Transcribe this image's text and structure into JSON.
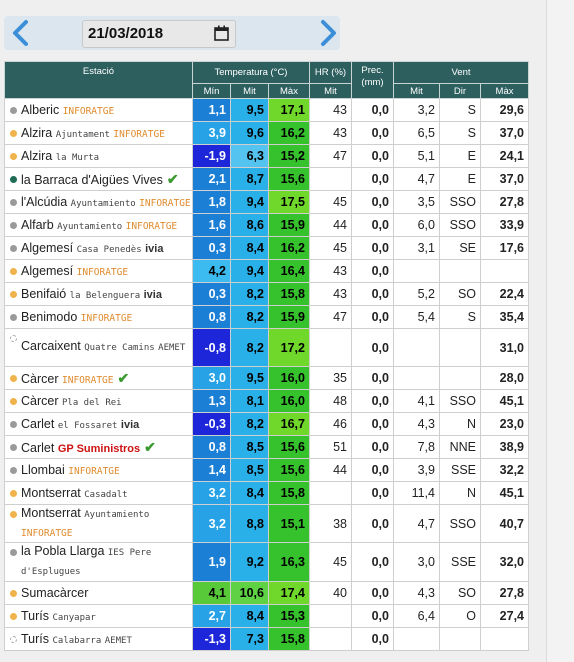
{
  "date": "21/03/2018",
  "headers": {
    "station": "Estació",
    "temperature": "Temperatura (°C)",
    "hr": "HR (%)",
    "prec": "Prec.",
    "prec_unit": "(mm)",
    "wind": "Vent",
    "min": "Mín",
    "mit": "Mit",
    "max": "Màx",
    "hr_mit": "Mit",
    "wind_mit": "Mit",
    "dir": "Dir",
    "wind_max": "Màx"
  },
  "rows": [
    {
      "name": "Alberic",
      "sub": "",
      "brand": "INFORATGE",
      "dot": "grey",
      "min": "1,1",
      "mit": "9,5",
      "max": "17,1",
      "hr": "43",
      "prec": "0,0",
      "wmit": "3,2",
      "dir": "S",
      "wmax": "29,6",
      "mincls": "min-a",
      "mitcls": "mit-a",
      "maxcls": "max-a"
    },
    {
      "name": "Alzira",
      "sub": "Ajuntament",
      "brand": "INFORATGE",
      "dot": "orange",
      "min": "3,9",
      "mit": "9,6",
      "max": "16,2",
      "hr": "43",
      "prec": "0,0",
      "wmit": "6,5",
      "dir": "S",
      "wmax": "37,0",
      "mincls": "min-b",
      "mitcls": "mit-a",
      "maxcls": "max-b"
    },
    {
      "name": "Alzira",
      "sub": "la Murta",
      "brand": "",
      "dot": "orange",
      "min": "-1,9",
      "mit": "6,3",
      "max": "15,2",
      "hr": "47",
      "prec": "0,0",
      "wmit": "5,1",
      "dir": "E",
      "wmax": "24,1",
      "mincls": "min-c",
      "mitcls": "mit-b",
      "maxcls": "max-b"
    },
    {
      "name": "la Barraca d'Aigües Vives",
      "sub": "",
      "brand": "",
      "dot": "darkgreen",
      "check": "✔",
      "min": "2,1",
      "mit": "8,7",
      "max": "15,6",
      "hr": "",
      "prec": "0,0",
      "wmit": "4,7",
      "dir": "E",
      "wmax": "37,0",
      "mincls": "min-a",
      "mitcls": "mit-a",
      "maxcls": "max-b"
    },
    {
      "name": "l'Alcúdia",
      "sub": "Ayuntamiento",
      "brand": "INFORATGE",
      "dot": "grey",
      "min": "1,8",
      "mit": "9,4",
      "max": "17,5",
      "hr": "45",
      "prec": "0,0",
      "wmit": "3,5",
      "dir": "SSO",
      "wmax": "27,8",
      "mincls": "min-a",
      "mitcls": "mit-a",
      "maxcls": "max-a"
    },
    {
      "name": "Alfarb",
      "sub": "Ayuntamiento",
      "brand": "INFORATGE",
      "dot": "grey",
      "min": "1,6",
      "mit": "8,6",
      "max": "15,9",
      "hr": "44",
      "prec": "0,0",
      "wmit": "6,0",
      "dir": "SSO",
      "wmax": "33,9",
      "mincls": "min-a",
      "mitcls": "mit-a",
      "maxcls": "max-b"
    },
    {
      "name": "Algemesí",
      "sub": "Casa Penedès",
      "brand": "ivia",
      "dot": "grey",
      "min": "0,3",
      "mit": "8,4",
      "max": "16,2",
      "hr": "45",
      "prec": "0,0",
      "wmit": "3,1",
      "dir": "SE",
      "wmax": "17,6",
      "mincls": "min-a",
      "mitcls": "mit-a",
      "maxcls": "max-b"
    },
    {
      "name": "Algemesí",
      "sub": "",
      "brand": "INFORATGE",
      "dot": "orange",
      "min": "4,2",
      "mit": "9,4",
      "max": "16,4",
      "hr": "43",
      "prec": "0,0",
      "wmit": "",
      "dir": "",
      "wmax": "",
      "mincls": "min-d",
      "mitcls": "mit-a",
      "maxcls": "max-b"
    },
    {
      "name": "Benifaió",
      "sub": "la Belenguera",
      "brand": "ivia",
      "dot": "orange",
      "min": "0,3",
      "mit": "8,2",
      "max": "15,8",
      "hr": "43",
      "prec": "0,0",
      "wmit": "5,2",
      "dir": "SO",
      "wmax": "22,4",
      "mincls": "min-a",
      "mitcls": "mit-a",
      "maxcls": "max-b"
    },
    {
      "name": "Benimodo",
      "sub": "",
      "brand": "INFORATGE",
      "dot": "grey",
      "min": "0,8",
      "mit": "8,2",
      "max": "15,9",
      "hr": "47",
      "prec": "0,0",
      "wmit": "5,4",
      "dir": "S",
      "wmax": "35,4",
      "mincls": "min-a",
      "mitcls": "mit-a",
      "maxcls": "max-b"
    },
    {
      "name": "Carcaixent",
      "sub": "Quatre Camins",
      "brand": "AEMET",
      "dot": "hollow",
      "wrap": true,
      "min": "-0,8",
      "mit": "8,2",
      "max": "17,2",
      "hr": "",
      "prec": "0,0",
      "wmit": "",
      "dir": "",
      "wmax": "31,0",
      "mincls": "min-c",
      "mitcls": "mit-a",
      "maxcls": "max-a"
    },
    {
      "name": "Càrcer",
      "sub": "",
      "brand": "INFORATGE",
      "dot": "orange",
      "check": "✔",
      "min": "3,0",
      "mit": "9,5",
      "max": "16,0",
      "hr": "35",
      "prec": "0,0",
      "wmit": "",
      "dir": "",
      "wmax": "28,0",
      "mincls": "min-b",
      "mitcls": "mit-a",
      "maxcls": "max-b"
    },
    {
      "name": "Càrcer",
      "sub": "Pla del Rei",
      "brand": "",
      "dot": "orange",
      "min": "1,3",
      "mit": "8,1",
      "max": "16,0",
      "hr": "48",
      "prec": "0,0",
      "wmit": "4,1",
      "dir": "SSO",
      "wmax": "45,1",
      "mincls": "min-a",
      "mitcls": "mit-a",
      "maxcls": "max-b"
    },
    {
      "name": "Carlet",
      "sub": "el Fossaret",
      "brand": "ivia",
      "dot": "grey",
      "min": "-0,3",
      "mit": "8,2",
      "max": "16,7",
      "hr": "46",
      "prec": "0,0",
      "wmit": "4,3",
      "dir": "N",
      "wmax": "23,0",
      "mincls": "min-c",
      "mitcls": "mit-a",
      "maxcls": "max-a"
    },
    {
      "name": "Carlet",
      "sub": "",
      "brand": "GP Suministros",
      "dot": "grey",
      "check": "✔",
      "min": "0,8",
      "mit": "8,5",
      "max": "15,6",
      "hr": "51",
      "prec": "0,0",
      "wmit": "7,8",
      "dir": "NNE",
      "wmax": "38,9",
      "mincls": "min-a",
      "mitcls": "mit-a",
      "maxcls": "max-b"
    },
    {
      "name": "Llombai",
      "sub": "",
      "brand": "INFORATGE",
      "dot": "grey",
      "min": "1,4",
      "mit": "8,5",
      "max": "15,6",
      "hr": "44",
      "prec": "0,0",
      "wmit": "3,9",
      "dir": "SSE",
      "wmax": "32,2",
      "mincls": "min-a",
      "mitcls": "mit-a",
      "maxcls": "max-b"
    },
    {
      "name": "Montserrat",
      "sub": "Casadalt",
      "brand": "",
      "dot": "orange",
      "min": "3,2",
      "mit": "8,4",
      "max": "15,8",
      "hr": "",
      "prec": "0,0",
      "wmit": "11,4",
      "dir": "N",
      "wmax": "45,1",
      "mincls": "min-b",
      "mitcls": "mit-a",
      "maxcls": "max-b"
    },
    {
      "name": "Montserrat",
      "sub": "Ayuntamiento",
      "brand": "INFORATGE",
      "dot": "orange",
      "wrap": true,
      "min": "3,2",
      "mit": "8,8",
      "max": "15,1",
      "hr": "38",
      "prec": "0,0",
      "wmit": "4,7",
      "dir": "SSO",
      "wmax": "40,7",
      "mincls": "min-b",
      "mitcls": "mit-a",
      "maxcls": "max-b"
    },
    {
      "name": "la Pobla Llarga",
      "sub": "IES Pere d'Esplugues",
      "brand": "",
      "dot": "grey",
      "wrap": true,
      "min": "1,9",
      "mit": "9,2",
      "max": "16,3",
      "hr": "45",
      "prec": "0,0",
      "wmit": "3,0",
      "dir": "SSE",
      "wmax": "32,0",
      "mincls": "min-a",
      "mitcls": "mit-a",
      "maxcls": "max-b"
    },
    {
      "name": "Sumacàrcer",
      "sub": "",
      "brand": "",
      "dot": "orange",
      "min": "4,1",
      "mit": "10,6",
      "max": "17,4",
      "hr": "40",
      "prec": "0,0",
      "wmit": "4,3",
      "dir": "SO",
      "wmax": "27,8",
      "mincls": "min-e",
      "mitcls": "mit-g",
      "maxcls": "max-a"
    },
    {
      "name": "Turís",
      "sub": "Canyapar",
      "brand": "",
      "dot": "orange",
      "min": "2,7",
      "mit": "8,4",
      "max": "15,3",
      "hr": "",
      "prec": "0,0",
      "wmit": "6,4",
      "dir": "O",
      "wmax": "27,4",
      "mincls": "min-b",
      "mitcls": "mit-a",
      "maxcls": "max-b"
    },
    {
      "name": "Turís",
      "sub": "Calabarra",
      "brand": "AEMET",
      "dot": "hollow",
      "min": "-1,3",
      "mit": "7,3",
      "max": "15,8",
      "hr": "",
      "prec": "0,0",
      "wmit": "",
      "dir": "",
      "wmax": "",
      "mincls": "min-c",
      "mitcls": "mit-a",
      "maxcls": "max-b"
    }
  ],
  "colors": {
    "header": "#2e5f5f",
    "arrow": "#3b8ed8",
    "ivia_accent": "#e08c2e",
    "check": "#3a9a2e"
  }
}
